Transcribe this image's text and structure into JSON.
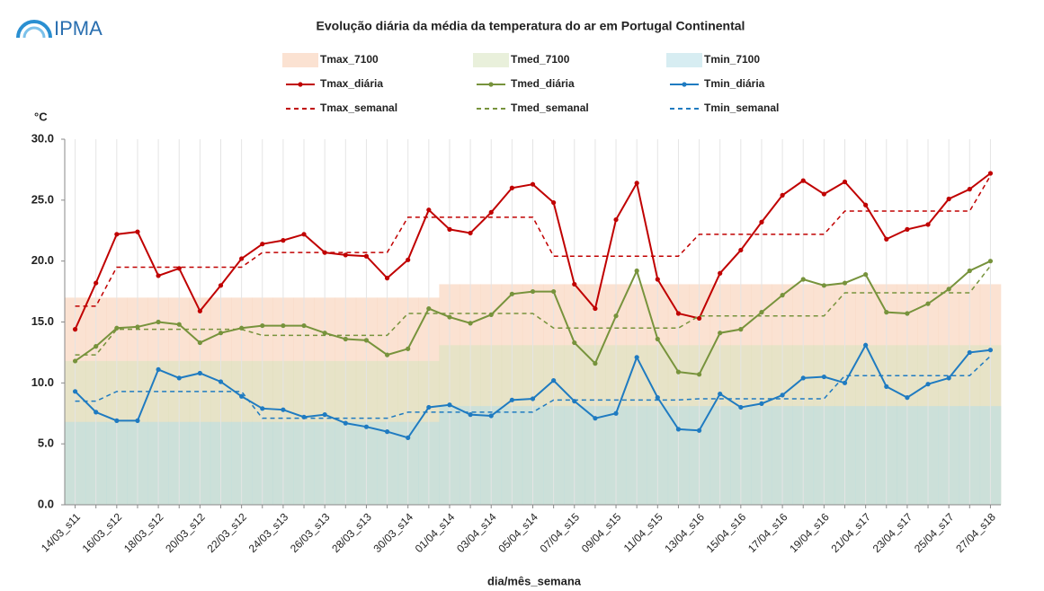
{
  "logo": "IPMA",
  "chart_data": {
    "type": "line",
    "title": "Evolução diária da média da temperatura do ar em Portugal Continental",
    "y_label": "°C",
    "x_label": "dia/mês_semana",
    "categories": [
      "14/03_s11",
      null,
      "16/03_s12",
      null,
      "18/03_s12",
      null,
      "20/03_s12",
      null,
      "22/03_s12",
      null,
      "24/03_s13",
      null,
      "26/03_s13",
      null,
      "28/03_s13",
      null,
      "30/03_s14",
      null,
      "01/04_s14",
      null,
      "03/04_s14",
      null,
      "05/04_s14",
      null,
      "07/04_s15",
      null,
      "09/04_s15",
      null,
      "11/04_s15",
      null,
      "13/04_s16",
      null,
      "15/04_s16",
      null,
      "17/04_s16",
      null,
      "19/04_s16",
      null,
      "21/04_s17",
      null,
      "23/04_s17",
      null,
      "25/04_s17",
      null,
      "27/04_s18"
    ],
    "ylim": [
      0,
      30
    ],
    "yticks": [
      {
        "value": 0,
        "label": "0.0"
      },
      {
        "value": 5,
        "label": "5.0"
      },
      {
        "value": 10,
        "label": "10.0"
      },
      {
        "value": 15,
        "label": "15.0"
      },
      {
        "value": 20,
        "label": "20.0"
      },
      {
        "value": 25,
        "label": "25.0"
      },
      {
        "value": 30,
        "label": "30.0"
      }
    ],
    "grid": "x",
    "series": [
      {
        "name": "Tmax_7100",
        "style": "band",
        "color": "#f8cbad",
        "values": [
          17.0,
          17.0,
          17.0,
          17.0,
          17.0,
          17.0,
          17.0,
          17.0,
          17.0,
          17.0,
          17.0,
          17.0,
          17.0,
          17.0,
          17.0,
          17.0,
          17.0,
          17.0,
          18.1,
          18.1,
          18.1,
          18.1,
          18.1,
          18.1,
          18.1,
          18.1,
          18.1,
          18.1,
          18.1,
          18.1,
          18.1,
          18.1,
          18.1,
          18.1,
          18.1,
          18.1,
          18.1,
          18.1,
          18.1,
          18.1,
          18.1,
          18.1,
          18.1,
          18.1,
          18.1
        ]
      },
      {
        "name": "Tmed_7100",
        "style": "band",
        "color": "#d7e4bd",
        "values": [
          11.8,
          11.8,
          11.8,
          11.8,
          11.8,
          11.8,
          11.8,
          11.8,
          11.8,
          11.8,
          11.8,
          11.8,
          11.8,
          11.8,
          11.8,
          11.8,
          11.8,
          11.8,
          13.1,
          13.1,
          13.1,
          13.1,
          13.1,
          13.1,
          13.1,
          13.1,
          13.1,
          13.1,
          13.1,
          13.1,
          13.1,
          13.1,
          13.1,
          13.1,
          13.1,
          13.1,
          13.1,
          13.1,
          13.1,
          13.1,
          13.1,
          13.1,
          13.1,
          13.1,
          13.1
        ]
      },
      {
        "name": "Tmin_7100",
        "style": "band",
        "color": "#b7dee8",
        "values": [
          6.8,
          6.8,
          6.8,
          6.8,
          6.8,
          6.8,
          6.8,
          6.8,
          6.8,
          6.8,
          6.8,
          6.8,
          6.8,
          6.8,
          6.8,
          6.8,
          6.8,
          6.8,
          8.1,
          8.1,
          8.1,
          8.1,
          8.1,
          8.1,
          8.1,
          8.1,
          8.1,
          8.1,
          8.1,
          8.1,
          8.1,
          8.1,
          8.1,
          8.1,
          8.1,
          8.1,
          8.1,
          8.1,
          8.1,
          8.1,
          8.1,
          8.1,
          8.1,
          8.1,
          8.1
        ]
      },
      {
        "name": "Tmax_diária",
        "style": "marker",
        "color": "#c00000",
        "values": [
          14.4,
          18.2,
          22.2,
          22.4,
          18.8,
          19.4,
          15.9,
          18.0,
          20.2,
          21.4,
          21.7,
          22.2,
          20.7,
          20.5,
          20.4,
          18.6,
          20.1,
          24.2,
          22.6,
          22.3,
          24.0,
          26.0,
          26.3,
          24.8,
          18.1,
          16.1,
          23.4,
          26.4,
          18.5,
          15.7,
          15.3,
          19.0,
          20.9,
          23.2,
          25.4,
          26.6,
          25.5,
          26.5,
          24.6,
          21.8,
          22.6,
          23.0,
          25.1,
          25.9,
          27.2
        ]
      },
      {
        "name": "Tmed_diária",
        "style": "marker",
        "color": "#77933c",
        "values": [
          11.8,
          13.0,
          14.5,
          14.6,
          15.0,
          14.8,
          13.3,
          14.1,
          14.5,
          14.7,
          14.7,
          14.7,
          14.1,
          13.6,
          13.5,
          12.3,
          12.8,
          16.1,
          15.4,
          14.9,
          15.6,
          17.3,
          17.5,
          17.5,
          13.3,
          11.6,
          15.5,
          19.2,
          13.6,
          10.9,
          10.7,
          14.1,
          14.4,
          15.8,
          17.2,
          18.5,
          18.0,
          18.2,
          18.9,
          15.8,
          15.7,
          16.5,
          17.7,
          19.2,
          20.0
        ]
      },
      {
        "name": "Tmin_diária",
        "style": "marker",
        "color": "#1f7bc1",
        "values": [
          9.3,
          7.6,
          6.9,
          6.9,
          11.1,
          10.4,
          10.8,
          10.1,
          8.9,
          7.9,
          7.8,
          7.2,
          7.4,
          6.7,
          6.4,
          6.0,
          5.5,
          8.0,
          8.2,
          7.4,
          7.3,
          8.6,
          8.7,
          10.2,
          8.5,
          7.1,
          7.5,
          12.1,
          8.8,
          6.2,
          6.1,
          9.1,
          8.0,
          8.3,
          9.0,
          10.4,
          10.5,
          10.0,
          13.1,
          9.7,
          8.8,
          9.9,
          10.4,
          12.5,
          12.7
        ]
      },
      {
        "name": "Tmax_semanal",
        "style": "dashed",
        "color": "#c00000",
        "values": [
          16.3,
          16.3,
          19.5,
          19.5,
          19.5,
          19.5,
          19.5,
          19.5,
          19.5,
          20.7,
          20.7,
          20.7,
          20.7,
          20.7,
          20.7,
          20.7,
          23.6,
          23.6,
          23.6,
          23.6,
          23.6,
          23.6,
          23.6,
          20.4,
          20.4,
          20.4,
          20.4,
          20.4,
          20.4,
          20.4,
          22.2,
          22.2,
          22.2,
          22.2,
          22.2,
          22.2,
          22.2,
          24.1,
          24.1,
          24.1,
          24.1,
          24.1,
          24.1,
          24.1,
          27.0
        ]
      },
      {
        "name": "Tmed_semanal",
        "style": "dashed",
        "color": "#77933c",
        "values": [
          12.3,
          12.3,
          14.4,
          14.4,
          14.4,
          14.4,
          14.4,
          14.4,
          14.4,
          13.9,
          13.9,
          13.9,
          13.9,
          13.9,
          13.9,
          13.9,
          15.7,
          15.7,
          15.7,
          15.7,
          15.7,
          15.7,
          15.7,
          14.5,
          14.5,
          14.5,
          14.5,
          14.5,
          14.5,
          14.5,
          15.5,
          15.5,
          15.5,
          15.5,
          15.5,
          15.5,
          15.5,
          17.4,
          17.4,
          17.4,
          17.4,
          17.4,
          17.4,
          17.4,
          19.6
        ]
      },
      {
        "name": "Tmin_semanal",
        "style": "dashed",
        "color": "#1f7bc1",
        "values": [
          8.5,
          8.5,
          9.3,
          9.3,
          9.3,
          9.3,
          9.3,
          9.3,
          9.3,
          7.1,
          7.1,
          7.1,
          7.1,
          7.1,
          7.1,
          7.1,
          7.6,
          7.6,
          7.6,
          7.6,
          7.6,
          7.6,
          7.6,
          8.6,
          8.6,
          8.6,
          8.6,
          8.6,
          8.6,
          8.6,
          8.7,
          8.7,
          8.7,
          8.7,
          8.7,
          8.7,
          8.7,
          10.6,
          10.6,
          10.6,
          10.6,
          10.6,
          10.6,
          10.6,
          12.2
        ]
      }
    ]
  }
}
